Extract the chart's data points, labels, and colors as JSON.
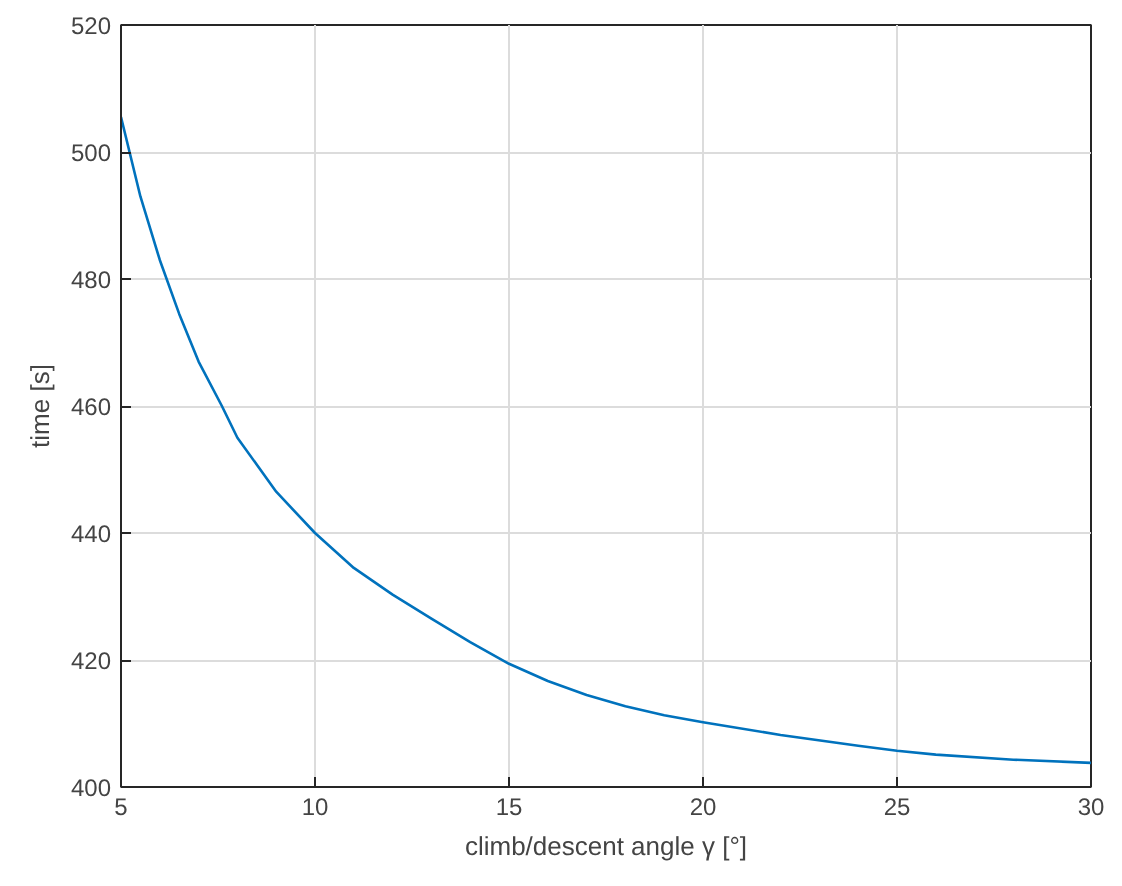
{
  "chart_data": {
    "type": "line",
    "xlabel": "climb/descent angle γ [°]",
    "ylabel": "time [s]",
    "x": [
      5,
      5.5,
      6,
      6.5,
      7,
      7.6,
      8,
      9,
      10,
      11,
      12,
      13,
      14,
      15,
      16,
      17,
      18,
      19,
      20,
      22,
      24,
      25,
      26,
      28,
      30
    ],
    "series": [
      {
        "color": "#0072bd",
        "values": [
          505.5,
          493,
          483,
          474.5,
          467,
          460,
          455,
          446.5,
          440,
          434.5,
          430.3,
          426.5,
          422.8,
          419.4,
          416.7,
          414.5,
          412.7,
          411.3,
          410.2,
          408.2,
          406.5,
          405.7,
          405.1,
          404.3,
          403.8
        ]
      }
    ],
    "xlim": [
      5,
      30
    ],
    "ylim": [
      400,
      520
    ],
    "xticks": [
      5,
      10,
      15,
      20,
      25,
      30
    ],
    "yticks": [
      400,
      420,
      440,
      460,
      480,
      500,
      520
    ],
    "grid": true,
    "marker": "none",
    "line_style": "solid"
  }
}
